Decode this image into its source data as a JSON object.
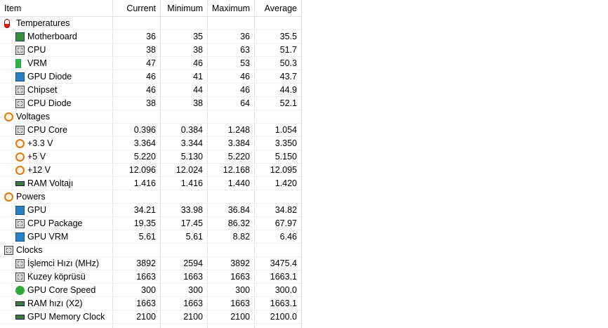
{
  "header": {
    "columns": [
      "Item",
      "Current",
      "Minimum",
      "Maximum",
      "Average"
    ]
  },
  "groups": [
    {
      "label": "Temperatures",
      "rows": [
        [
          "Motherboard",
          "36",
          "35",
          "36",
          "35.5"
        ],
        [
          "CPU",
          "38",
          "38",
          "63",
          "51.7"
        ],
        [
          "VRM",
          "47",
          "46",
          "53",
          "50.3"
        ],
        [
          "GPU Diode",
          "46",
          "41",
          "46",
          "43.7"
        ],
        [
          "Chipset",
          "46",
          "44",
          "46",
          "44.9"
        ],
        [
          "CPU Diode",
          "38",
          "38",
          "64",
          "52.1"
        ]
      ]
    },
    {
      "label": "Voltages",
      "rows": [
        [
          "CPU Core",
          "0.396",
          "0.384",
          "1.248",
          "1.054"
        ],
        [
          "+3.3 V",
          "3.364",
          "3.344",
          "3.384",
          "3.350"
        ],
        [
          "+5 V",
          "5.220",
          "5.130",
          "5.220",
          "5.150"
        ],
        [
          "+12 V",
          "12.096",
          "12.024",
          "12.168",
          "12.095"
        ],
        [
          "RAM Voltajı",
          "1.416",
          "1.416",
          "1.440",
          "1.420"
        ]
      ]
    },
    {
      "label": "Powers",
      "rows": [
        [
          "GPU",
          "34.21",
          "33.98",
          "36.84",
          "34.82"
        ],
        [
          "CPU Package",
          "19.35",
          "17.45",
          "86.32",
          "67.97"
        ],
        [
          "GPU VRM",
          "5.61",
          "5.61",
          "8.82",
          "6.46"
        ]
      ]
    },
    {
      "label": "Clocks",
      "rows": [
        [
          "İşlemci Hızı (MHz)",
          "3892",
          "2594",
          "3892",
          "3475.4"
        ],
        [
          "Kuzey köprüsü",
          "1663",
          "1663",
          "1663",
          "1663.1"
        ],
        [
          "GPU Core Speed",
          "300",
          "300",
          "300",
          "300.0"
        ],
        [
          "RAM hızı (X2)",
          "1663",
          "1663",
          "1663",
          "1663.1"
        ],
        [
          "GPU Memory Clock",
          "2100",
          "2100",
          "2100",
          "2100.0"
        ]
      ]
    }
  ]
}
